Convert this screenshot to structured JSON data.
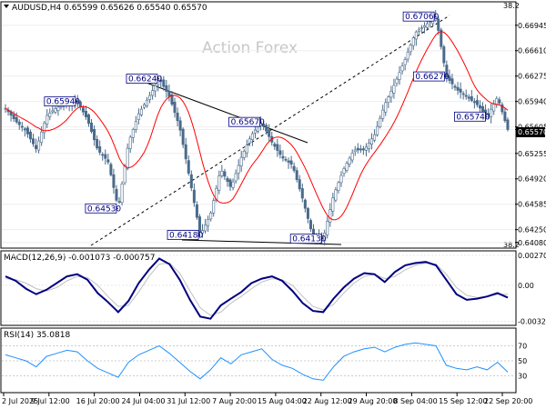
{
  "chart_data": [
    {
      "type": "candlestick",
      "title": "AUDUSD,H4 0.65599 0.65626 0.65540 0.65570",
      "watermark": "Action Forex",
      "last_price_label": "0.65570",
      "ylim": [
        0.6403,
        0.6723
      ],
      "y_ticks": [
        "0.66945",
        "0.66610",
        "0.66275",
        "0.65940",
        "0.65605",
        "0.65570",
        "0.65255",
        "0.64920",
        "0.64585",
        "0.64250",
        "0.64080"
      ],
      "x_ticks": [
        "2 Jul 2025",
        "9 Jul 12:00",
        "16 Jul 20:00",
        "24 Jul 04:00",
        "31 Jul 12:00",
        "7 Aug 20:00",
        "15 Aug 04:00",
        "22 Aug 12:00",
        "29 Aug 20:00",
        "8 Sep 04:00",
        "15 Sep 12:00",
        "22 Sep 20:00"
      ],
      "corner_top": "38.2",
      "corner_bottom": "38.2",
      "annotations": [
        "0.65940",
        "0.66240",
        "0.64530",
        "0.64180",
        "0.65670",
        "0.64130",
        "0.67060",
        "0.66270",
        "0.65740"
      ],
      "moving_average_color": "#ff0000",
      "candle_color": "#4a6a8a",
      "path": [
        [
          0,
          0.6585
        ],
        [
          1,
          0.6568
        ],
        [
          2,
          0.6555
        ],
        [
          3,
          0.6531
        ],
        [
          4,
          0.6575
        ],
        [
          5,
          0.6586
        ],
        [
          6,
          0.659
        ],
        [
          7,
          0.6594
        ],
        [
          8,
          0.657
        ],
        [
          9,
          0.653
        ],
        [
          10,
          0.6515
        ],
        [
          11,
          0.6453
        ],
        [
          12,
          0.654
        ],
        [
          13,
          0.6578
        ],
        [
          14,
          0.66
        ],
        [
          15,
          0.6624
        ],
        [
          16,
          0.66
        ],
        [
          17,
          0.656
        ],
        [
          18,
          0.649
        ],
        [
          19,
          0.6418
        ],
        [
          20,
          0.6445
        ],
        [
          21,
          0.6505
        ],
        [
          22,
          0.648
        ],
        [
          23,
          0.652
        ],
        [
          24,
          0.655
        ],
        [
          25,
          0.6567
        ],
        [
          26,
          0.654
        ],
        [
          27,
          0.652
        ],
        [
          28,
          0.651
        ],
        [
          29,
          0.6465
        ],
        [
          30,
          0.6415
        ],
        [
          31,
          0.6413
        ],
        [
          32,
          0.647
        ],
        [
          33,
          0.6505
        ],
        [
          34,
          0.653
        ],
        [
          35,
          0.653
        ],
        [
          36,
          0.655
        ],
        [
          37,
          0.659
        ],
        [
          38,
          0.6618
        ],
        [
          39,
          0.665
        ],
        [
          40,
          0.6685
        ],
        [
          41,
          0.6695
        ],
        [
          42,
          0.6706
        ],
        [
          43,
          0.6627
        ],
        [
          44,
          0.661
        ],
        [
          45,
          0.66
        ],
        [
          46,
          0.659
        ],
        [
          47,
          0.6574
        ],
        [
          48,
          0.66
        ],
        [
          49,
          0.6557
        ]
      ],
      "indicators": [
        {
          "name": "MACD(12,26,9) -0.001073 -0.000757",
          "ticks": [
            "0.002702",
            "0.00",
            "-0.003241"
          ],
          "ylim": [
            -0.00335,
            0.00285
          ],
          "line_color": "#000080",
          "signal_color": "#c0c0c0",
          "macd": [
            0.0008,
            0.0004,
            -0.0003,
            -0.0008,
            -0.0004,
            0.0002,
            0.0008,
            0.001,
            0.0005,
            -0.0007,
            -0.0015,
            -0.0024,
            -0.0014,
            0.0002,
            0.0014,
            0.0024,
            0.0019,
            0.0005,
            -0.0013,
            -0.0028,
            -0.003,
            -0.0018,
            -0.0012,
            -0.0006,
            0.0002,
            0.0006,
            0.0008,
            0.0004,
            -0.0005,
            -0.0016,
            -0.0023,
            -0.0024,
            -0.0012,
            -0.0002,
            0.0006,
            0.0011,
            0.001,
            0.0003,
            0.0012,
            0.0018,
            0.002,
            0.0021,
            0.0018,
            0.0005,
            -0.0008,
            -0.0013,
            -0.0012,
            -0.001,
            -0.0007,
            -0.0011
          ],
          "signal": [
            0.0006,
            0.0005,
            0.0002,
            -0.0003,
            -0.0005,
            -0.0002,
            0.0004,
            0.0008,
            0.0007,
            0.0,
            -0.001,
            -0.0019,
            -0.0018,
            -0.0006,
            0.0008,
            0.0019,
            0.002,
            0.0011,
            -0.0005,
            -0.002,
            -0.0027,
            -0.0024,
            -0.0016,
            -0.001,
            -0.0003,
            0.0003,
            0.0006,
            0.0005,
            0.0,
            -0.001,
            -0.0019,
            -0.0022,
            -0.0017,
            -0.0007,
            0.0002,
            0.0008,
            0.001,
            0.0006,
            0.0008,
            0.0014,
            0.0018,
            0.002,
            0.0019,
            0.001,
            -0.0002,
            -0.0009,
            -0.0011,
            -0.001,
            -0.0008,
            -0.0008
          ]
        },
        {
          "name": "RSI(14) 35.0818",
          "ticks": [
            "70",
            "50",
            "30"
          ],
          "ylim": [
            10,
            90
          ],
          "line_color": "#1e90ff",
          "values": [
            58,
            54,
            50,
            42,
            56,
            60,
            64,
            62,
            50,
            40,
            34,
            28,
            48,
            58,
            64,
            70,
            60,
            48,
            36,
            26,
            38,
            54,
            46,
            58,
            62,
            66,
            52,
            44,
            40,
            32,
            26,
            24,
            42,
            56,
            62,
            66,
            68,
            62,
            68,
            72,
            74,
            72,
            70,
            44,
            40,
            38,
            42,
            38,
            48,
            35
          ]
        }
      ]
    }
  ]
}
